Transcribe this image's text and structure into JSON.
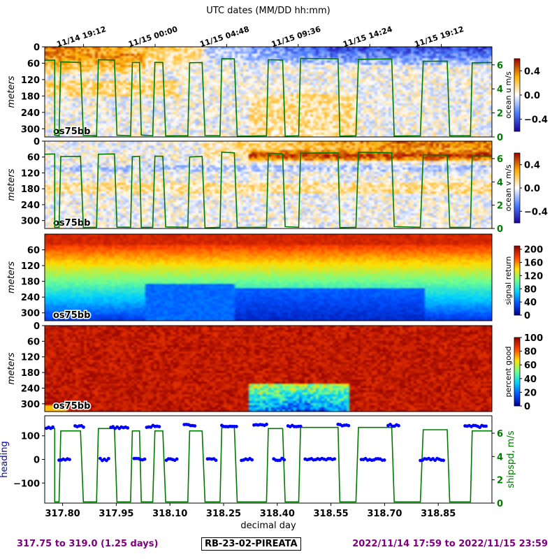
{
  "top_axis": {
    "title": "UTC dates (MM/DD hh:mm)",
    "labels": [
      "11/14 19:12",
      "11/15 00:00",
      "11/15 04:48",
      "11/15 09:36",
      "11/15 14:24",
      "11/15 19:12"
    ],
    "label_days": [
      317.8,
      318.0,
      318.2,
      318.4,
      318.6,
      318.8
    ]
  },
  "bottom_axis": {
    "title": "decimal day",
    "ticks": [
      "317.80",
      "317.95",
      "318.10",
      "318.25",
      "318.40",
      "318.55",
      "318.70",
      "318.85"
    ],
    "tick_values": [
      317.8,
      317.95,
      318.1,
      318.25,
      318.4,
      318.55,
      318.7,
      318.85
    ],
    "range": [
      317.75,
      319.0
    ]
  },
  "chart_data": [
    {
      "type": "heatmap",
      "panel": "ocean-u",
      "ylabel": "meters",
      "yticks": [
        "0",
        "60",
        "120",
        "180",
        "240",
        "300"
      ],
      "ylim": [
        330,
        0
      ],
      "instrument_label": "os75bb",
      "colorbar": {
        "label": "ocean u m/s",
        "ticks": [
          "0.4",
          "0.0",
          "−0.4"
        ],
        "range": [
          -0.6,
          0.6
        ],
        "colors": [
          "#1a00a0",
          "#4a7cff",
          "#ffffff",
          "#ffb000",
          "#a00000"
        ]
      },
      "right_axis": {
        "ticks": [
          "0",
          "2",
          "4",
          "6"
        ],
        "label": "",
        "range": [
          0,
          7.5
        ]
      }
    },
    {
      "type": "heatmap",
      "panel": "ocean-v",
      "ylabel": "meters",
      "yticks": [
        "0",
        "60",
        "120",
        "180",
        "240",
        "300"
      ],
      "ylim": [
        330,
        0
      ],
      "instrument_label": "os75bb",
      "colorbar": {
        "label": "ocean v m/s",
        "ticks": [
          "0.4",
          "0.0",
          "−0.4"
        ],
        "range": [
          -0.6,
          0.6
        ],
        "colors": [
          "#1a00a0",
          "#4a7cff",
          "#ffffff",
          "#ffb000",
          "#a00000"
        ]
      },
      "right_axis": {
        "ticks": [
          "0",
          "2",
          "4",
          "6"
        ],
        "label": "",
        "range": [
          0,
          7.5
        ]
      }
    },
    {
      "type": "heatmap",
      "panel": "signal-return",
      "ylabel": "meters",
      "yticks": [
        "60",
        "120",
        "180",
        "240",
        "300"
      ],
      "ylim": [
        330,
        0
      ],
      "instrument_label": "os75bb",
      "colorbar": {
        "label": "signal return",
        "ticks": [
          "200",
          "160",
          "120",
          "80",
          "40",
          "0"
        ],
        "range": [
          0,
          210
        ],
        "colors": [
          "#00008f",
          "#0050ff",
          "#00d0ff",
          "#70ff90",
          "#ffe000",
          "#ff4000",
          "#900000"
        ]
      }
    },
    {
      "type": "heatmap",
      "panel": "percent-good",
      "ylabel": "meters",
      "yticks": [
        "0",
        "60",
        "120",
        "180",
        "240",
        "300"
      ],
      "ylim": [
        330,
        0
      ],
      "instrument_label": "os75bb",
      "colorbar": {
        "label": "percent good",
        "ticks": [
          "100",
          "80",
          "60",
          "40",
          "20",
          "0"
        ],
        "range": [
          0,
          100
        ],
        "colors": [
          "#00008f",
          "#0050ff",
          "#00d0ff",
          "#70ff90",
          "#ffe000",
          "#ff4000",
          "#900000"
        ]
      }
    },
    {
      "type": "line",
      "panel": "heading-shipspd",
      "left_axis": {
        "label": "heading",
        "ticks": [
          "100",
          "0",
          "−100"
        ],
        "range": [
          -185,
          185
        ]
      },
      "right_axis": {
        "label": "shipspd, m/s",
        "ticks": [
          "0",
          "2",
          "4",
          "6"
        ],
        "range": [
          0,
          7.5
        ]
      },
      "series": [
        {
          "name": "heading",
          "color": "#0000ff"
        },
        {
          "name": "shipspd",
          "color": "#007a00"
        }
      ],
      "shipspd_segments": [
        {
          "x": [
            317.75,
            317.778
          ],
          "y": [
            6.4,
            6.4
          ]
        },
        {
          "x": [
            317.778,
            317.79
          ],
          "y": [
            0.1,
            0.1
          ]
        },
        {
          "x": [
            317.795,
            317.85
          ],
          "y": [
            6.2,
            6.2
          ]
        },
        {
          "x": [
            317.858,
            317.895
          ],
          "y": [
            0.1,
            0.1
          ]
        },
        {
          "x": [
            317.9,
            317.945
          ],
          "y": [
            6.4,
            6.4
          ]
        },
        {
          "x": [
            317.952,
            317.99
          ],
          "y": [
            0.1,
            0.1
          ]
        },
        {
          "x": [
            317.995,
            318.015
          ],
          "y": [
            6.2,
            6.2
          ]
        },
        {
          "x": [
            318.02,
            318.052
          ],
          "y": [
            0.1,
            0.1
          ]
        },
        {
          "x": [
            318.058,
            318.08
          ],
          "y": [
            6.2,
            6.2
          ]
        },
        {
          "x": [
            318.088,
            318.15
          ],
          "y": [
            0.1,
            0.1
          ]
        },
        {
          "x": [
            318.155,
            318.19
          ],
          "y": [
            6.2,
            6.2
          ]
        },
        {
          "x": [
            318.198,
            318.24
          ],
          "y": [
            0.1,
            0.1
          ]
        },
        {
          "x": [
            318.245,
            318.28
          ],
          "y": [
            6.5,
            6.5
          ]
        },
        {
          "x": [
            318.288,
            318.37
          ],
          "y": [
            0.1,
            0.1
          ]
        },
        {
          "x": [
            318.375,
            318.415
          ],
          "y": [
            6.4,
            6.4
          ]
        },
        {
          "x": [
            318.422,
            318.46
          ],
          "y": [
            0.1,
            0.1
          ]
        },
        {
          "x": [
            318.465,
            318.57
          ],
          "y": [
            6.5,
            6.5
          ]
        },
        {
          "x": [
            318.575,
            318.62
          ],
          "y": [
            0.1,
            0.1
          ]
        },
        {
          "x": [
            318.627,
            318.72
          ],
          "y": [
            6.5,
            6.5
          ]
        },
        {
          "x": [
            318.727,
            318.8
          ],
          "y": [
            0.1,
            0.1
          ]
        },
        {
          "x": [
            318.808,
            318.875
          ],
          "y": [
            6.3,
            6.3
          ]
        },
        {
          "x": [
            318.882,
            318.94
          ],
          "y": [
            0.1,
            0.1
          ]
        },
        {
          "x": [
            318.945,
            319.0
          ],
          "y": [
            6.2,
            6.2
          ]
        }
      ],
      "heading_segments": [
        {
          "x": [
            317.755,
            317.775
          ],
          "y": 133
        },
        {
          "x": [
            317.79,
            317.825
          ],
          "y": 0
        },
        {
          "x": [
            317.835,
            317.86
          ],
          "y": 140
        },
        {
          "x": [
            317.905,
            317.93
          ],
          "y": 0
        },
        {
          "x": [
            317.935,
            317.985
          ],
          "y": 135
        },
        {
          "x": [
            318.0,
            318.03
          ],
          "y": 0
        },
        {
          "x": [
            318.035,
            318.075
          ],
          "y": 140
        },
        {
          "x": [
            318.09,
            318.125
          ],
          "y": 0
        },
        {
          "x": [
            318.14,
            318.175
          ],
          "y": 145
        },
        {
          "x": [
            318.205,
            318.23
          ],
          "y": 0
        },
        {
          "x": [
            318.245,
            318.29
          ],
          "y": 140
        },
        {
          "x": [
            318.3,
            318.33
          ],
          "y": 0
        },
        {
          "x": [
            318.335,
            318.375
          ],
          "y": 145
        },
        {
          "x": [
            318.39,
            318.425
          ],
          "y": 0
        },
        {
          "x": [
            318.43,
            318.47
          ],
          "y": 140
        },
        {
          "x": [
            318.478,
            318.565
          ],
          "y": 0
        },
        {
          "x": [
            318.57,
            318.605
          ],
          "y": 145
        },
        {
          "x": [
            318.635,
            318.7
          ],
          "y": 0
        },
        {
          "x": [
            318.71,
            318.745
          ],
          "y": 145
        },
        {
          "x": [
            318.8,
            318.87
          ],
          "y": 0
        },
        {
          "x": [
            318.925,
            318.985
          ],
          "y": 140
        }
      ]
    }
  ],
  "footer": {
    "left": "317.75 to 319.0 (1.25 days)",
    "center": "RB-23-02-PIREATA",
    "right": "2022/11/14 17:59 to 2022/11/15 23:59"
  }
}
